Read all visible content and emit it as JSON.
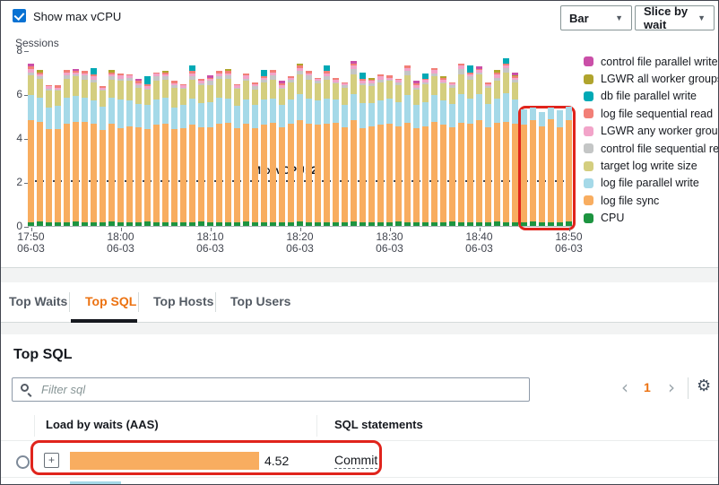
{
  "header": {
    "show_max_vcpu_label": "Show max vCPU",
    "chart_type_value": "Bar",
    "slice_by_value": "Slice by wait"
  },
  "icons": {
    "dropdown_arrow": "▼",
    "pagination_prev": "‹",
    "pagination_next": "›",
    "settings": "⚙",
    "expand_plus": "+"
  },
  "chart_data": {
    "type": "bar",
    "stacked": true,
    "ylabel": "Sessions",
    "ylim": [
      0,
      8
    ],
    "yticks": [
      0,
      2,
      4,
      6,
      8
    ],
    "grid": false,
    "legend_position": "right",
    "max_vcpu_annotation": {
      "label": "Max vCPU: 2",
      "value": 2
    },
    "highlight": {
      "from_bar": 55,
      "to_bar": 60,
      "color": "#e0241c"
    },
    "x_tick_positions": [
      0,
      10,
      20,
      30,
      40,
      50,
      60
    ],
    "x_tick_labels": [
      [
        "17:50",
        "06-03"
      ],
      [
        "18:00",
        "06-03"
      ],
      [
        "18:10",
        "06-03"
      ],
      [
        "18:20",
        "06-03"
      ],
      [
        "18:30",
        "06-03"
      ],
      [
        "18:40",
        "06-03"
      ],
      [
        "18:50",
        "06-03"
      ]
    ],
    "series": [
      {
        "name": "CPU",
        "color": "#1d9440",
        "values": [
          0.15,
          0.2,
          0.15,
          0.15,
          0.15,
          0.2,
          0.15,
          0.15,
          0.15,
          0.2,
          0.15,
          0.15,
          0.15,
          0.2,
          0.15,
          0.15,
          0.15,
          0.15,
          0.15,
          0.2,
          0.15,
          0.15,
          0.15,
          0.15,
          0.2,
          0.15,
          0.15,
          0.15,
          0.15,
          0.15,
          0.2,
          0.15,
          0.15,
          0.15,
          0.15,
          0.15,
          0.2,
          0.15,
          0.15,
          0.15,
          0.15,
          0.2,
          0.15,
          0.15,
          0.15,
          0.15,
          0.15,
          0.2,
          0.15,
          0.15,
          0.15,
          0.15,
          0.2,
          0.15,
          0.15,
          0.15,
          0.2,
          0.15,
          0.15,
          0.15,
          0.2
        ]
      },
      {
        "name": "log file sync",
        "color": "#f8ad60",
        "values": [
          4.65,
          4.55,
          4.25,
          4.25,
          4.5,
          4.55,
          4.6,
          4.5,
          4.2,
          4.45,
          4.3,
          4.4,
          4.35,
          4.2,
          4.45,
          4.5,
          4.25,
          4.3,
          4.45,
          4.3,
          4.35,
          4.5,
          4.55,
          4.3,
          4.45,
          4.3,
          4.45,
          4.55,
          4.35,
          4.5,
          4.6,
          4.5,
          4.45,
          4.5,
          4.55,
          4.35,
          4.6,
          4.3,
          4.4,
          4.45,
          4.5,
          4.35,
          4.55,
          4.3,
          4.4,
          4.6,
          4.45,
          4.3,
          4.55,
          4.5,
          4.65,
          4.35,
          4.5,
          4.6,
          4.5,
          4.45,
          4.6,
          4.4,
          4.7,
          4.35,
          4.6
        ]
      },
      {
        "name": "log file parallel write",
        "color": "#a5d9e8",
        "values": [
          1.15,
          1.1,
          1.0,
          1.05,
          1.2,
          1.15,
          1.1,
          1.05,
          1.1,
          1.2,
          1.3,
          1.15,
          1.05,
          1.1,
          1.15,
          1.2,
          1.0,
          1.05,
          1.2,
          1.1,
          1.15,
          1.2,
          1.1,
          1.0,
          1.1,
          1.05,
          1.15,
          1.1,
          1.0,
          1.1,
          1.2,
          1.15,
          1.1,
          1.15,
          1.05,
          1.0,
          1.2,
          1.15,
          1.05,
          1.1,
          1.15,
          1.1,
          1.25,
          1.05,
          1.1,
          1.2,
          1.1,
          1.05,
          1.3,
          1.15,
          1.2,
          1.05,
          1.1,
          1.3,
          1.1,
          0.7,
          0.6,
          0.65,
          0.55,
          0.75,
          0.65
        ]
      },
      {
        "name": "target log write size",
        "color": "#d4ce7f",
        "values": [
          0.9,
          0.85,
          0.75,
          0.7,
          0.85,
          0.9,
          0.8,
          0.85,
          0.7,
          0.8,
          0.85,
          0.9,
          0.75,
          0.7,
          0.85,
          0.8,
          0.9,
          0.75,
          0.85,
          0.8,
          0.75,
          0.85,
          0.9,
          0.8,
          0.85,
          0.7,
          0.8,
          0.85,
          0.75,
          0.8,
          0.9,
          0.85,
          0.8,
          0.85,
          0.75,
          0.8,
          0.9,
          0.8,
          0.75,
          0.85,
          0.8,
          0.75,
          0.9,
          0.7,
          0.8,
          0.85,
          0.8,
          0.75,
          0.9,
          0.85,
          0.9,
          0.75,
          0.8,
          0.95,
          0.8,
          0,
          0,
          0,
          0,
          0,
          0
        ]
      },
      {
        "name": "control file sequential read",
        "color": "#c4c6c6",
        "values": [
          0.15,
          0.1,
          0.1,
          0.05,
          0.15,
          0.1,
          0.2,
          0.1,
          0.05,
          0.15,
          0.1,
          0.15,
          0.1,
          0.05,
          0.2,
          0.15,
          0.1,
          0.05,
          0.15,
          0.1,
          0.2,
          0.1,
          0.15,
          0.05,
          0.1,
          0.15,
          0.1,
          0.2,
          0.05,
          0.1,
          0.15,
          0.2,
          0.1,
          0.15,
          0.05,
          0.1,
          0.25,
          0.1,
          0.15,
          0.1,
          0.05,
          0.15,
          0.2,
          0.1,
          0.1,
          0.15,
          0.05,
          0.1,
          0.25,
          0.15,
          0.1,
          0.05,
          0.15,
          0.2,
          0.1,
          0,
          0,
          0,
          0,
          0,
          0
        ]
      },
      {
        "name": "LGWR any worker group",
        "color": "#f2a4c9",
        "values": [
          0.15,
          0.1,
          0.1,
          0.1,
          0.15,
          0.1,
          0.1,
          0.15,
          0.1,
          0.1,
          0.15,
          0.1,
          0.1,
          0.1,
          0.15,
          0.1,
          0.1,
          0.1,
          0.15,
          0.1,
          0.1,
          0.15,
          0.1,
          0.1,
          0.15,
          0.1,
          0.1,
          0.15,
          0.1,
          0.1,
          0.15,
          0.1,
          0.1,
          0.15,
          0.1,
          0.1,
          0.15,
          0.1,
          0.1,
          0.15,
          0.1,
          0.1,
          0.15,
          0.1,
          0.1,
          0.15,
          0.1,
          0.1,
          0.15,
          0.1,
          0.1,
          0.1,
          0.15,
          0.1,
          0.1,
          0,
          0,
          0,
          0,
          0,
          0
        ]
      },
      {
        "name": "log file sequential read",
        "color": "#f27f77",
        "values": [
          0.1,
          0.1,
          0.05,
          0.1,
          0.1,
          0.05,
          0.1,
          0.1,
          0.05,
          0.1,
          0.1,
          0.05,
          0.1,
          0.1,
          0.05,
          0.1,
          0.1,
          0.05,
          0.1,
          0.1,
          0.05,
          0.1,
          0.1,
          0.05,
          0.1,
          0.1,
          0.05,
          0.1,
          0.1,
          0.05,
          0.1,
          0.1,
          0.05,
          0.1,
          0.1,
          0.05,
          0.1,
          0.1,
          0.05,
          0.1,
          0.1,
          0.05,
          0.1,
          0.1,
          0.05,
          0.1,
          0.1,
          0.05,
          0.1,
          0.1,
          0.05,
          0.1,
          0.1,
          0.1,
          0.05,
          0,
          0,
          0,
          0,
          0,
          0
        ]
      },
      {
        "name": "db file parallel write",
        "color": "#00a9b5",
        "values": [
          0,
          0,
          0,
          0,
          0,
          0,
          0,
          0.3,
          0,
          0,
          0,
          0,
          0,
          0.35,
          0,
          0,
          0,
          0,
          0.25,
          0,
          0,
          0,
          0,
          0,
          0,
          0,
          0.3,
          0,
          0,
          0,
          0,
          0,
          0,
          0.25,
          0,
          0,
          0,
          0.3,
          0,
          0,
          0,
          0,
          0,
          0,
          0.25,
          0,
          0,
          0,
          0,
          0.3,
          0,
          0,
          0,
          0.25,
          0,
          0,
          0,
          0,
          0,
          0,
          0
        ]
      },
      {
        "name": "LGWR all worker groups",
        "color": "#b0a42d",
        "values": [
          0,
          0.1,
          0,
          0,
          0,
          0,
          0,
          0,
          0,
          0.1,
          0,
          0,
          0,
          0,
          0,
          0.08,
          0,
          0,
          0,
          0,
          0,
          0,
          0.1,
          0,
          0,
          0,
          0,
          0,
          0,
          0,
          0.08,
          0,
          0,
          0,
          0,
          0,
          0,
          0,
          0.1,
          0,
          0,
          0,
          0,
          0,
          0,
          0,
          0.08,
          0,
          0,
          0,
          0,
          0,
          0.1,
          0,
          0.08,
          0,
          0,
          0,
          0,
          0,
          0
        ]
      },
      {
        "name": "control file parallel write",
        "color": "#ca4fa8",
        "values": [
          0.15,
          0,
          0,
          0,
          0,
          0.1,
          0,
          0,
          0,
          0,
          0,
          0,
          0.1,
          0,
          0,
          0,
          0,
          0,
          0,
          0,
          0.12,
          0,
          0,
          0,
          0,
          0,
          0,
          0,
          0.1,
          0,
          0,
          0,
          0,
          0,
          0,
          0,
          0.12,
          0,
          0,
          0,
          0,
          0,
          0,
          0.1,
          0,
          0,
          0,
          0,
          0,
          0,
          0.12,
          0,
          0,
          0,
          0.1,
          0,
          0,
          0,
          0,
          0,
          0
        ]
      }
    ]
  },
  "tabs": [
    {
      "label": "Top Waits",
      "active": false
    },
    {
      "label": "Top SQL",
      "active": true
    },
    {
      "label": "Top Hosts",
      "active": false
    },
    {
      "label": "Top Users",
      "active": false
    }
  ],
  "panel": {
    "title": "Top SQL",
    "filter_placeholder": "Filter sql",
    "pagination": {
      "page": "1"
    }
  },
  "table": {
    "columns": [
      "Load by waits (AAS)",
      "SQL statements"
    ],
    "rows": [
      {
        "aas": 4.52,
        "aas_label": "4.52",
        "sql": "Commit",
        "bar_color": "#f8ad60"
      }
    ],
    "next_row_peek": {
      "bar_color": "#a5d9e8"
    }
  }
}
